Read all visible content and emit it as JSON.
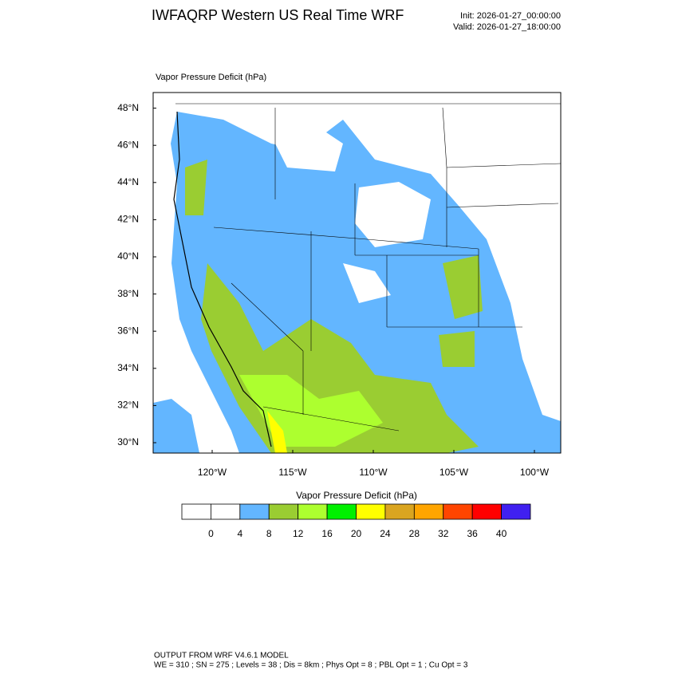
{
  "header": {
    "title": "IWFAQRP Western US Real Time WRF",
    "init": "Init: 2026-01-27_00:00:00",
    "valid": "Valid: 2026-01-27_18:00:00"
  },
  "map": {
    "field_label": "Vapor Pressure Deficit   (hPa)",
    "lat_ticks": [
      {
        "value": 48,
        "label": "48°N"
      },
      {
        "value": 46,
        "label": "46°N"
      },
      {
        "value": 44,
        "label": "44°N"
      },
      {
        "value": 42,
        "label": "42°N"
      },
      {
        "value": 40,
        "label": "40°N"
      },
      {
        "value": 38,
        "label": "38°N"
      },
      {
        "value": 36,
        "label": "36°N"
      },
      {
        "value": 34,
        "label": "34°N"
      },
      {
        "value": 32,
        "label": "32°N"
      },
      {
        "value": 30,
        "label": "30°N"
      }
    ],
    "lon_ticks": [
      {
        "value": -120,
        "label": "120°W"
      },
      {
        "value": -115,
        "label": "115°W"
      },
      {
        "value": -110,
        "label": "110°W"
      },
      {
        "value": -105,
        "label": "105°W"
      },
      {
        "value": -100,
        "label": "100°W"
      }
    ]
  },
  "colorbar": {
    "title": "Vapor Pressure Deficit  (hPa)",
    "colors": [
      "#ffffff",
      "#ffffff",
      "#63b6ff",
      "#9acd32",
      "#adff2f",
      "#00f000",
      "#ffff00",
      "#daa520",
      "#ffa500",
      "#ff4500",
      "#ff0000",
      "#4020f0"
    ],
    "levels": [
      0,
      4,
      8,
      12,
      16,
      20,
      24,
      28,
      32,
      36,
      40
    ]
  },
  "footer": {
    "line1": "OUTPUT FROM WRF V4.6.1 MODEL",
    "line2": "WE = 310 ; SN = 275 ; Levels = 38 ; Dis = 8km ; Phys Opt = 8 ; PBL Opt = 1 ; Cu Opt = 3"
  }
}
